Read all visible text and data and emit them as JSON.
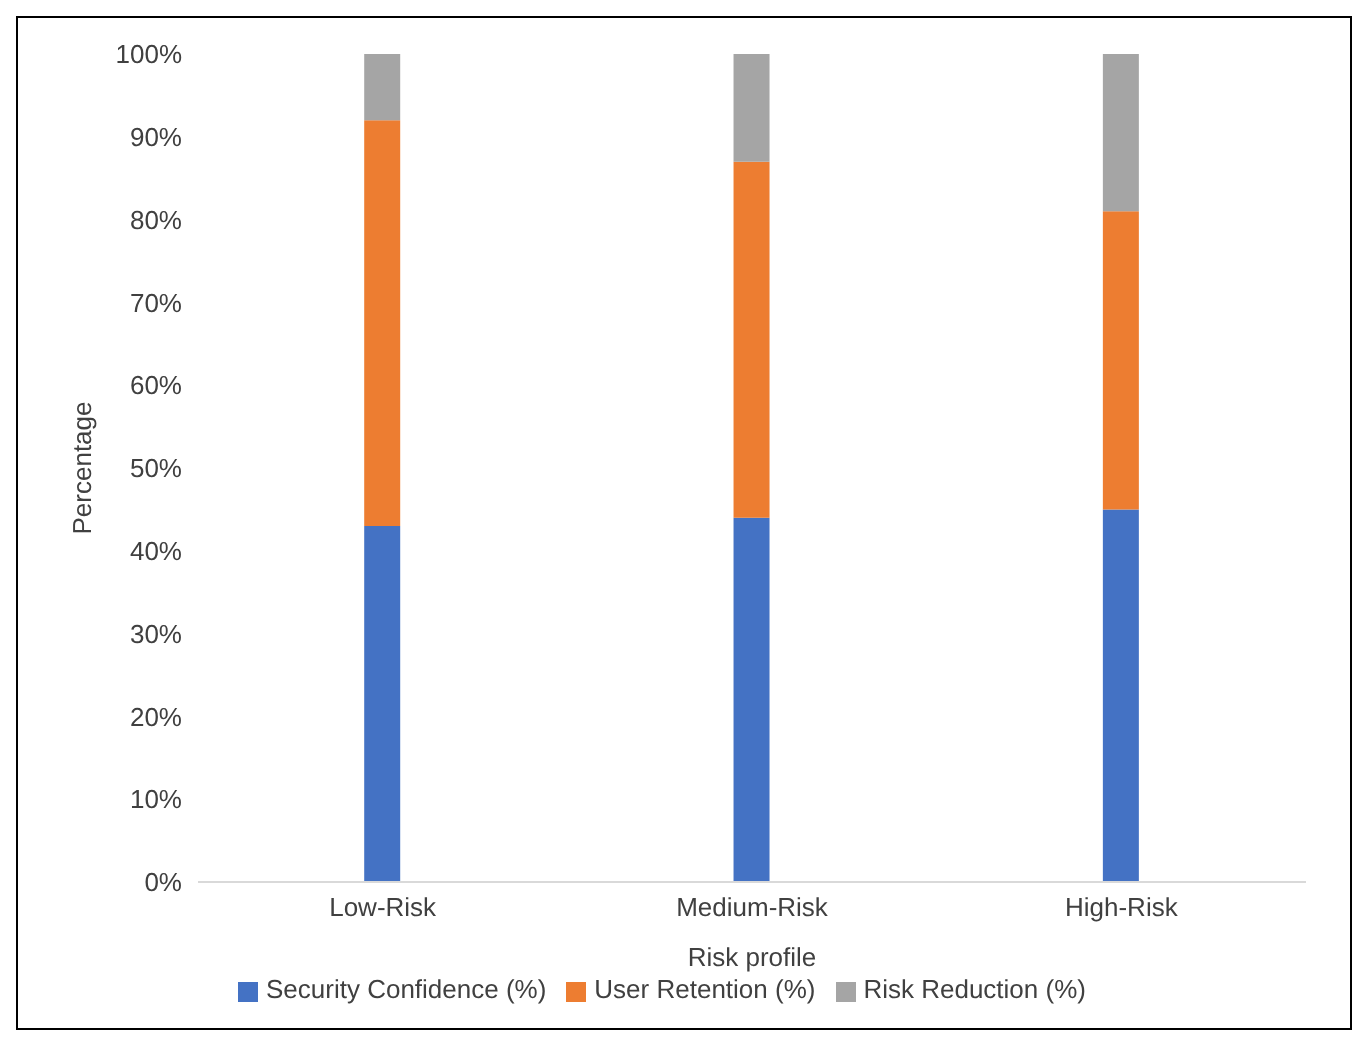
{
  "chart_data": {
    "type": "bar",
    "stacked": true,
    "xlabel": "Risk profile",
    "ylabel": "Percentage",
    "categories": [
      "Low-Risk",
      "Medium-Risk",
      "High-Risk"
    ],
    "series": [
      {
        "name": "Security Confidence (%)",
        "color": "#4472c4",
        "values": [
          43,
          44,
          45
        ]
      },
      {
        "name": "User Retention (%)",
        "color": "#ed7d31",
        "values": [
          49,
          43,
          36
        ]
      },
      {
        "name": "Risk Reduction (%)",
        "color": "#a5a5a5",
        "values": [
          8,
          13,
          19
        ]
      }
    ],
    "ylim": [
      0,
      100
    ],
    "yticks": [
      {
        "value": 0,
        "label": "0%"
      },
      {
        "value": 10,
        "label": "10%"
      },
      {
        "value": 20,
        "label": "20%"
      },
      {
        "value": 30,
        "label": "30%"
      },
      {
        "value": 40,
        "label": "40%"
      },
      {
        "value": 50,
        "label": "50%"
      },
      {
        "value": 60,
        "label": "60%"
      },
      {
        "value": 70,
        "label": "70%"
      },
      {
        "value": 80,
        "label": "80%"
      },
      {
        "value": 90,
        "label": "90%"
      },
      {
        "value": 100,
        "label": "100%"
      }
    ],
    "grid": false,
    "legend": "bottom"
  }
}
